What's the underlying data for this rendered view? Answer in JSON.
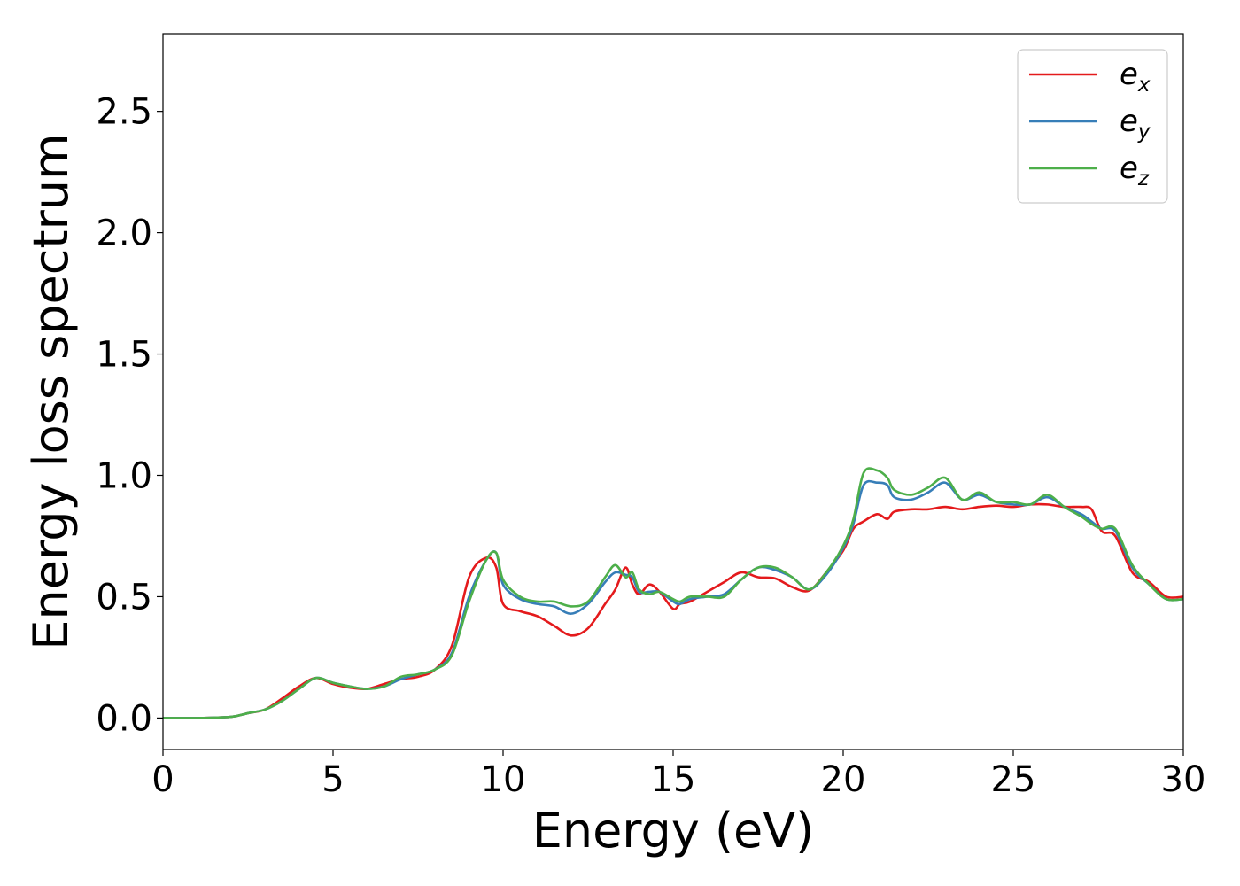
{
  "chart_data": {
    "type": "line",
    "xlabel": "Energy (eV)",
    "ylabel": "Energy loss spectrum",
    "xlim": [
      0,
      30
    ],
    "ylim": [
      -0.13,
      2.82
    ],
    "xticks": [
      "0",
      "5",
      "10",
      "15",
      "20",
      "25",
      "30"
    ],
    "yticks": [
      "0.0",
      "0.5",
      "1.0",
      "1.5",
      "2.0",
      "2.5"
    ],
    "grid": false,
    "legend_position": "top-right",
    "x": [
      0,
      1,
      2,
      2.5,
      3,
      3.5,
      4,
      4.5,
      5,
      5.5,
      6,
      6.5,
      7,
      7.5,
      8,
      8.5,
      9,
      9.5,
      9.8,
      10,
      10.5,
      11,
      11.5,
      12,
      12.5,
      13,
      13.3,
      13.6,
      13.8,
      14,
      14.3,
      14.6,
      15,
      15.2,
      15.5,
      16,
      16.5,
      17,
      17.5,
      18,
      18.5,
      19,
      19.5,
      20,
      20.3,
      20.6,
      21,
      21.3,
      21.5,
      22,
      22.5,
      23,
      23.5,
      24,
      24.5,
      25,
      25.5,
      26,
      26.5,
      27,
      27.3,
      27.6,
      28,
      28.5,
      29,
      29.5,
      30
    ],
    "series": [
      {
        "name": "e",
        "subscript": "x",
        "color": "#e41a1c",
        "values": [
          0.0,
          0.0,
          0.005,
          0.02,
          0.035,
          0.08,
          0.13,
          0.165,
          0.14,
          0.125,
          0.12,
          0.14,
          0.16,
          0.17,
          0.2,
          0.3,
          0.58,
          0.66,
          0.62,
          0.47,
          0.44,
          0.42,
          0.38,
          0.34,
          0.37,
          0.47,
          0.53,
          0.62,
          0.55,
          0.51,
          0.55,
          0.52,
          0.45,
          0.47,
          0.48,
          0.52,
          0.56,
          0.6,
          0.58,
          0.575,
          0.54,
          0.525,
          0.6,
          0.69,
          0.78,
          0.81,
          0.84,
          0.82,
          0.85,
          0.86,
          0.86,
          0.87,
          0.86,
          0.87,
          0.875,
          0.87,
          0.88,
          0.88,
          0.87,
          0.87,
          0.86,
          0.77,
          0.75,
          0.6,
          0.56,
          0.5,
          0.5
        ]
      },
      {
        "name": "e",
        "subscript": "y",
        "color": "#377eb8",
        "values": [
          0.0,
          0.0,
          0.005,
          0.02,
          0.035,
          0.07,
          0.12,
          0.165,
          0.145,
          0.13,
          0.12,
          0.13,
          0.16,
          0.18,
          0.2,
          0.27,
          0.5,
          0.65,
          0.68,
          0.55,
          0.49,
          0.47,
          0.46,
          0.43,
          0.47,
          0.56,
          0.6,
          0.59,
          0.58,
          0.52,
          0.52,
          0.52,
          0.48,
          0.47,
          0.49,
          0.5,
          0.51,
          0.57,
          0.62,
          0.61,
          0.58,
          0.53,
          0.59,
          0.7,
          0.8,
          0.96,
          0.97,
          0.96,
          0.91,
          0.9,
          0.93,
          0.97,
          0.9,
          0.92,
          0.89,
          0.88,
          0.88,
          0.91,
          0.87,
          0.84,
          0.81,
          0.78,
          0.77,
          0.62,
          0.55,
          0.49,
          0.49
        ]
      },
      {
        "name": "e",
        "subscript": "z",
        "color": "#4daf4a",
        "values": [
          0.0,
          0.0,
          0.005,
          0.02,
          0.035,
          0.07,
          0.12,
          0.165,
          0.145,
          0.13,
          0.12,
          0.13,
          0.17,
          0.18,
          0.2,
          0.26,
          0.48,
          0.65,
          0.68,
          0.57,
          0.5,
          0.48,
          0.48,
          0.46,
          0.48,
          0.58,
          0.63,
          0.58,
          0.6,
          0.53,
          0.51,
          0.52,
          0.49,
          0.48,
          0.5,
          0.5,
          0.5,
          0.57,
          0.62,
          0.62,
          0.58,
          0.53,
          0.6,
          0.71,
          0.82,
          1.01,
          1.02,
          0.99,
          0.94,
          0.92,
          0.95,
          0.99,
          0.9,
          0.93,
          0.89,
          0.89,
          0.88,
          0.92,
          0.87,
          0.83,
          0.8,
          0.78,
          0.78,
          0.63,
          0.55,
          0.49,
          0.49
        ]
      }
    ]
  }
}
